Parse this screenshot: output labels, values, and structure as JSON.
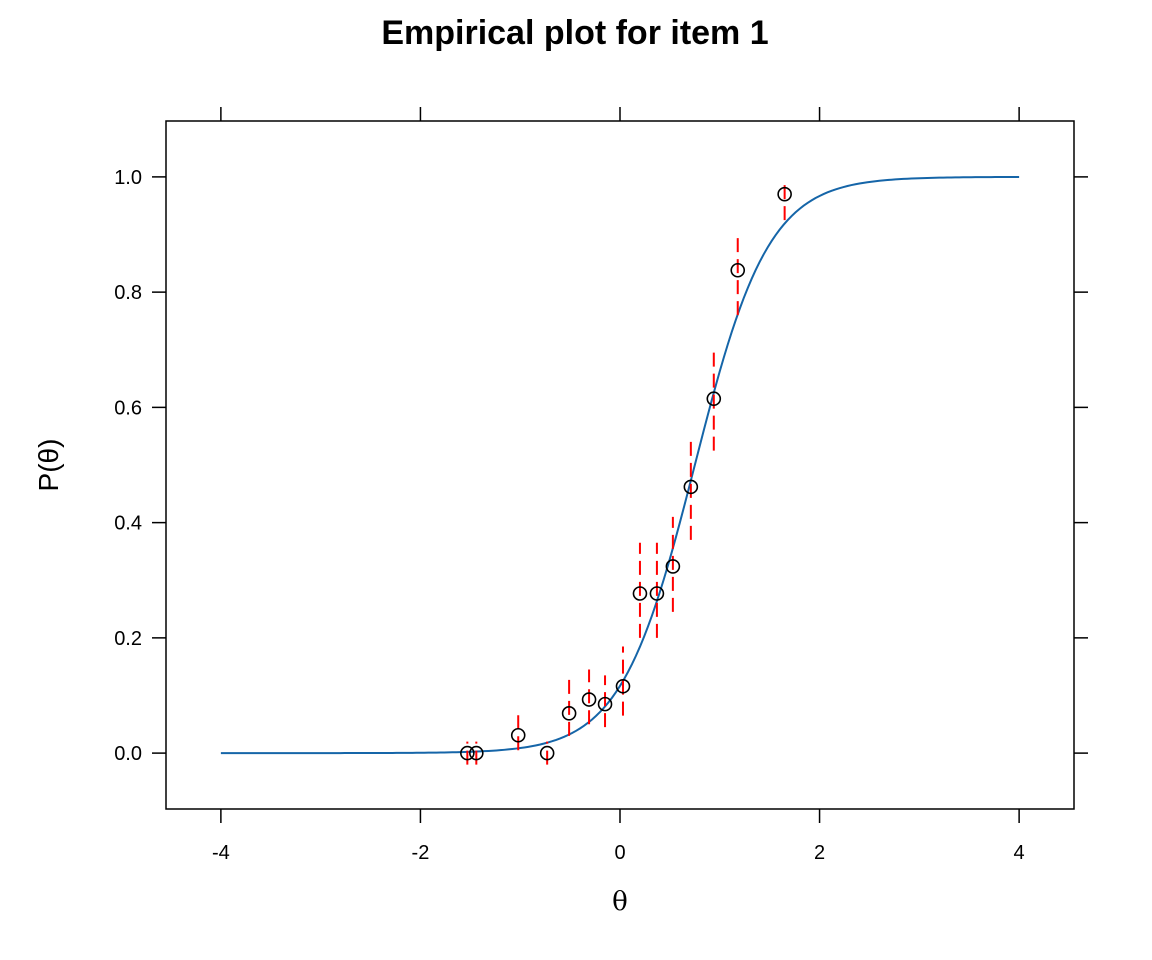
{
  "chart_data": {
    "type": "scatter",
    "title": "Empirical plot for item 1",
    "xlabel": "θ",
    "ylabel": "P(θ)",
    "xlim": [
      -4.55,
      4.55
    ],
    "ylim": [
      -0.097,
      1.097
    ],
    "x_ticks": [
      -4,
      -2,
      0,
      2,
      4
    ],
    "x_tick_labels": [
      "-4",
      "-2",
      "0",
      "2",
      "4"
    ],
    "y_ticks": [
      0.0,
      0.2,
      0.4,
      0.6,
      0.8,
      1.0
    ],
    "y_tick_labels": [
      "0.0",
      "0.2",
      "0.4",
      "0.6",
      "0.8",
      "1.0"
    ],
    "grid": false,
    "colors": {
      "curve": "#1565a8",
      "error_bars": "#ff0000",
      "points": "#000000"
    },
    "curve": {
      "type": "logistic",
      "a": 2.7,
      "b": 0.75,
      "x_range": [
        -4,
        4
      ]
    },
    "points": [
      {
        "x": -1.53,
        "y": 0.0,
        "lo": -0.02,
        "hi": 0.02
      },
      {
        "x": -1.44,
        "y": 0.0,
        "lo": -0.02,
        "hi": 0.02
      },
      {
        "x": -1.02,
        "y": 0.031,
        "lo": 0.005,
        "hi": 0.07
      },
      {
        "x": -0.73,
        "y": 0.0,
        "lo": -0.02,
        "hi": 0.02
      },
      {
        "x": -0.51,
        "y": 0.069,
        "lo": 0.03,
        "hi": 0.13
      },
      {
        "x": -0.31,
        "y": 0.093,
        "lo": 0.05,
        "hi": 0.145
      },
      {
        "x": -0.15,
        "y": 0.085,
        "lo": 0.045,
        "hi": 0.135
      },
      {
        "x": 0.03,
        "y": 0.116,
        "lo": 0.065,
        "hi": 0.185
      },
      {
        "x": 0.2,
        "y": 0.277,
        "lo": 0.2,
        "hi": 0.365
      },
      {
        "x": 0.37,
        "y": 0.277,
        "lo": 0.2,
        "hi": 0.365
      },
      {
        "x": 0.53,
        "y": 0.324,
        "lo": 0.245,
        "hi": 0.41
      },
      {
        "x": 0.71,
        "y": 0.462,
        "lo": 0.37,
        "hi": 0.545
      },
      {
        "x": 0.94,
        "y": 0.615,
        "lo": 0.525,
        "hi": 0.695
      },
      {
        "x": 1.18,
        "y": 0.838,
        "lo": 0.76,
        "hi": 0.895
      },
      {
        "x": 1.65,
        "y": 0.97,
        "lo": 0.925,
        "hi": 0.995
      }
    ]
  }
}
